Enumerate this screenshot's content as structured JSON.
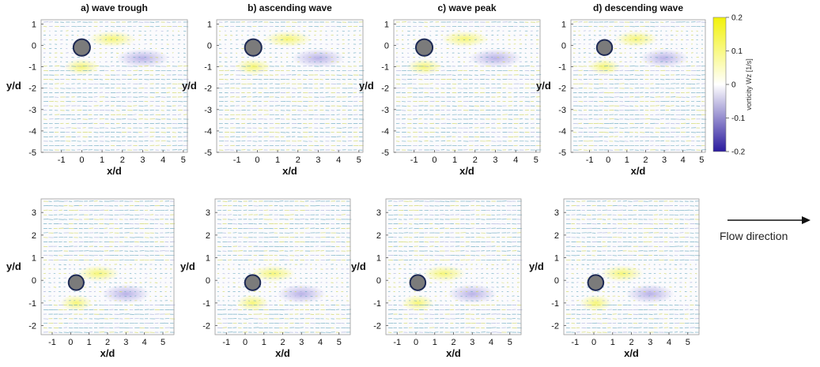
{
  "chart_data": {
    "type": "heatmap",
    "colorbar": {
      "label": "vorticity Wz [1/s]",
      "range": [
        -0.2,
        0.2
      ],
      "ticks": [
        0.2,
        0.1,
        0,
        -0.1,
        -0.2
      ],
      "colors": [
        "#2a1a9e",
        "#ffffff",
        "#f2f20a"
      ]
    },
    "annotation": {
      "text": "Flow direction"
    },
    "panels": [
      {
        "title": "a) wave trough",
        "xlabel": "x/d",
        "ylabel": "y/d",
        "xlim": [
          -2,
          5.2
        ],
        "ylim": [
          -5,
          1.2
        ],
        "xticks": [
          -1,
          0,
          1,
          2,
          3,
          4,
          5
        ],
        "yticks": [
          1,
          0,
          -1,
          -2,
          -3,
          -4,
          -5
        ],
        "cylinder": [
          0,
          -0.1
        ]
      },
      {
        "title": "b) ascending wave",
        "xlabel": "x/d",
        "ylabel": "y/d",
        "xlim": [
          -2,
          5.2
        ],
        "ylim": [
          -5,
          1.2
        ],
        "xticks": [
          -1,
          0,
          1,
          2,
          3,
          4,
          5
        ],
        "yticks": [
          1,
          0,
          -1,
          -2,
          -3,
          -4,
          -5
        ],
        "cylinder": [
          -0.2,
          -0.1
        ]
      },
      {
        "title": "c) wave peak",
        "xlabel": "x/d",
        "ylabel": "y/d",
        "xlim": [
          -2,
          5.2
        ],
        "ylim": [
          -5,
          1.2
        ],
        "xticks": [
          -1,
          0,
          1,
          2,
          3,
          4,
          5
        ],
        "yticks": [
          1,
          0,
          -1,
          -2,
          -3,
          -4,
          -5
        ],
        "cylinder": [
          -0.5,
          -0.1
        ]
      },
      {
        "title": "d) descending wave",
        "xlabel": "x/d",
        "ylabel": "y/d",
        "xlim": [
          -2,
          5.2
        ],
        "ylim": [
          -5,
          1.2
        ],
        "xticks": [
          -1,
          0,
          1,
          2,
          3,
          4,
          5
        ],
        "yticks": [
          1,
          0,
          -1,
          -2,
          -3,
          -4,
          -5
        ],
        "cylinder": [
          -0.2,
          -0.1
        ]
      },
      {
        "title": "",
        "xlabel": "x/d",
        "ylabel": "y/d",
        "xlim": [
          -1.6,
          5.6
        ],
        "ylim": [
          -2.4,
          3.6
        ],
        "xticks": [
          -1,
          0,
          1,
          2,
          3,
          4,
          5
        ],
        "yticks": [
          3,
          2,
          1,
          0,
          -1,
          -2
        ],
        "cylinder": [
          0.3,
          -0.1
        ]
      },
      {
        "title": "",
        "xlabel": "x/d",
        "ylabel": "y/d",
        "xlim": [
          -1.6,
          5.6
        ],
        "ylim": [
          -2.4,
          3.6
        ],
        "xticks": [
          -1,
          0,
          1,
          2,
          3,
          4,
          5
        ],
        "yticks": [
          3,
          2,
          1,
          0,
          -1,
          -2
        ],
        "cylinder": [
          0.4,
          -0.1
        ]
      },
      {
        "title": "",
        "xlabel": "x/d",
        "ylabel": "y/d",
        "xlim": [
          -1.6,
          5.6
        ],
        "ylim": [
          -2.4,
          3.6
        ],
        "xticks": [
          -1,
          0,
          1,
          2,
          3,
          4,
          5
        ],
        "yticks": [
          3,
          2,
          1,
          0,
          -1,
          -2
        ],
        "cylinder": [
          0.1,
          -0.1
        ]
      },
      {
        "title": "",
        "xlabel": "x/d",
        "ylabel": "y/d",
        "xlim": [
          -1.6,
          5.6
        ],
        "ylim": [
          -2.4,
          3.6
        ],
        "xticks": [
          -1,
          0,
          1,
          2,
          3,
          4,
          5
        ],
        "yticks": [
          3,
          2,
          1,
          0,
          -1,
          -2
        ],
        "cylinder": [
          0.1,
          -0.1
        ]
      }
    ]
  }
}
